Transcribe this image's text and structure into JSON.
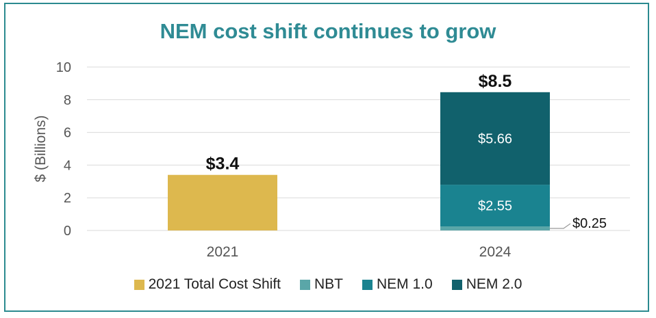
{
  "title": "NEM cost shift continues to grow",
  "colors": {
    "total_2021": "#DDB84E",
    "nbt": "#5AA6A8",
    "nem1": "#1A8390",
    "nem2": "#11616C",
    "grid": "#D9D9D9",
    "axis_text": "#555555",
    "title": "#2F8B94"
  },
  "chart_data": {
    "type": "bar",
    "stacked": true,
    "title": "NEM cost shift continues to grow",
    "xlabel": "",
    "ylabel": "$ (Billions)",
    "ylim": [
      0,
      10
    ],
    "yticks": [
      "0",
      "2",
      "4",
      "6",
      "8",
      "10"
    ],
    "grid": true,
    "legend_position": "bottom",
    "categories": [
      "2021",
      "2024"
    ],
    "series": [
      {
        "name": "2021 Total Cost Shift",
        "values": [
          3.4,
          0
        ],
        "labels": [
          "",
          ""
        ]
      },
      {
        "name": "NBT",
        "values": [
          0,
          0.25
        ],
        "labels": [
          "",
          "$0.25"
        ]
      },
      {
        "name": "NEM 1.0",
        "values": [
          0,
          2.55
        ],
        "labels": [
          "",
          "$2.55"
        ]
      },
      {
        "name": "NEM 2.0",
        "values": [
          0,
          5.66
        ],
        "labels": [
          "",
          "$5.66"
        ]
      }
    ],
    "totals": [
      "$3.4",
      "$8.5"
    ]
  }
}
